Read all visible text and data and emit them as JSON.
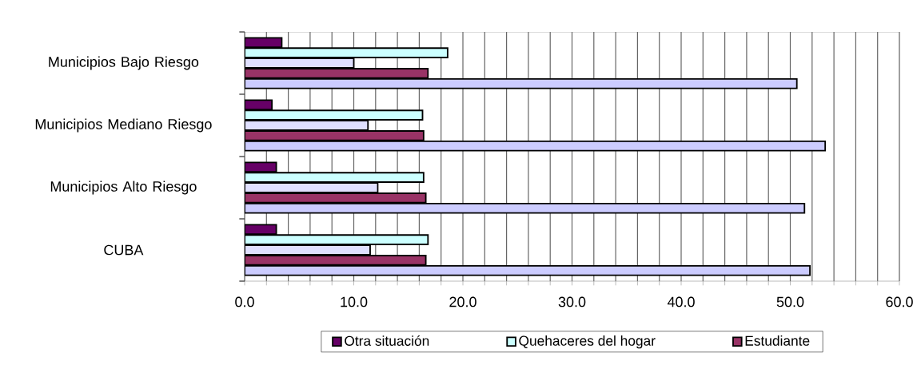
{
  "chart_data": {
    "type": "bar",
    "orientation": "horizontal",
    "categories": [
      "Municipios Bajo Riesgo",
      "Municipios Mediano Riesgo",
      "Municipios Alto Riesgo",
      "CUBA"
    ],
    "series": [
      {
        "name": "Otra situación",
        "color": "#660066",
        "values": [
          3.4,
          2.5,
          2.9,
          2.9
        ]
      },
      {
        "name": "Quehaceres del hogar",
        "color": "#ccffff",
        "values": [
          18.6,
          16.3,
          16.4,
          16.8
        ]
      },
      {
        "color": "#e0e0ff",
        "values": [
          10.0,
          11.3,
          12.2,
          11.5
        ]
      },
      {
        "name": "Estudiante",
        "color": "#993366",
        "values": [
          16.8,
          16.4,
          16.6,
          16.6
        ]
      },
      {
        "color": "#ccccff",
        "values": [
          50.6,
          53.2,
          51.3,
          51.8
        ]
      }
    ],
    "xlim": [
      0,
      60
    ],
    "xticks": [
      {
        "value": 0,
        "label": "0.0"
      },
      {
        "value": 2,
        "label": null
      },
      {
        "value": 4,
        "label": null
      },
      {
        "value": 6,
        "label": null
      },
      {
        "value": 8,
        "label": null
      },
      {
        "value": 10,
        "label": "10.0"
      },
      {
        "value": 12,
        "label": null
      },
      {
        "value": 14,
        "label": null
      },
      {
        "value": 16,
        "label": null
      },
      {
        "value": 18,
        "label": null
      },
      {
        "value": 20,
        "label": "20.0"
      },
      {
        "value": 22,
        "label": null
      },
      {
        "value": 24,
        "label": null
      },
      {
        "value": 26,
        "label": null
      },
      {
        "value": 28,
        "label": null
      },
      {
        "value": 30,
        "label": "30.0"
      },
      {
        "value": 32,
        "label": null
      },
      {
        "value": 34,
        "label": null
      },
      {
        "value": 36,
        "label": null
      },
      {
        "value": 38,
        "label": null
      },
      {
        "value": 40,
        "label": "40.0"
      },
      {
        "value": 42,
        "label": null
      },
      {
        "value": 44,
        "label": null
      },
      {
        "value": 46,
        "label": null
      },
      {
        "value": 48,
        "label": null
      },
      {
        "value": 50,
        "label": "50.0"
      },
      {
        "value": 52,
        "label": null
      },
      {
        "value": 54,
        "label": null
      },
      {
        "value": 56,
        "label": null
      },
      {
        "value": 58,
        "label": null
      },
      {
        "value": 60,
        "label": "60.0"
      }
    ],
    "grid": "x",
    "legend": "bottom"
  }
}
